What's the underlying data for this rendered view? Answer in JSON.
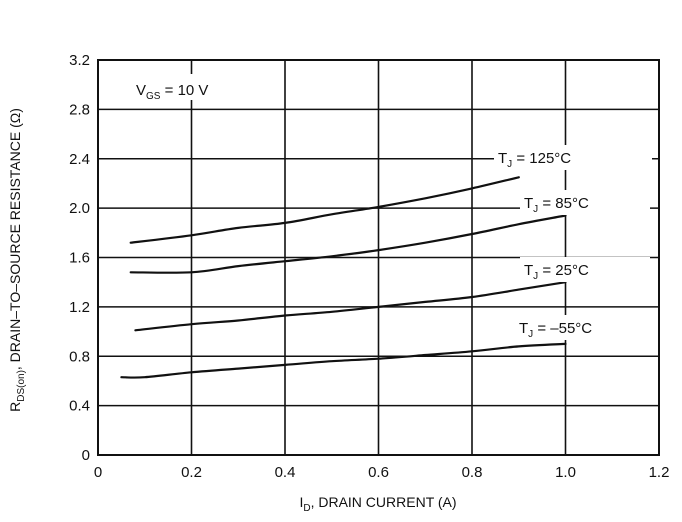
{
  "chart_data": {
    "type": "line",
    "title": "",
    "xlabel": {
      "prefix": "I",
      "sub": "D",
      "rest": ", DRAIN CURRENT (A)"
    },
    "ylabel": {
      "prefix": "R",
      "sub": "DS(on)",
      "rest": ", DRAIN–TO–SOURCE RESISTANCE (Ω)"
    },
    "xlim": [
      0,
      1.2
    ],
    "ylim": [
      0,
      3.2
    ],
    "x_ticks": [
      "0",
      "0.2",
      "0.4",
      "0.6",
      "0.8",
      "1.0",
      "1.2"
    ],
    "y_ticks": [
      "0",
      "0.4",
      "0.8",
      "1.2",
      "1.6",
      "2.0",
      "2.4",
      "2.8",
      "3.2"
    ],
    "grid": true,
    "condition": {
      "prefix": "V",
      "sub": "GS",
      "rest": " = 10 V"
    },
    "series": [
      {
        "name": "T_J = 125°C",
        "label": {
          "prefix": "T",
          "sub": "J",
          "rest": " = 125°C"
        },
        "points": [
          [
            0.07,
            1.72
          ],
          [
            0.2,
            1.78
          ],
          [
            0.3,
            1.84
          ],
          [
            0.4,
            1.88
          ],
          [
            0.5,
            1.95
          ],
          [
            0.6,
            2.01
          ],
          [
            0.7,
            2.08
          ],
          [
            0.8,
            2.16
          ],
          [
            0.9,
            2.25
          ]
        ]
      },
      {
        "name": "T_J = 85°C",
        "label": {
          "prefix": "T",
          "sub": "J",
          "rest": " = 85°C"
        },
        "points": [
          [
            0.07,
            1.48
          ],
          [
            0.2,
            1.48
          ],
          [
            0.3,
            1.53
          ],
          [
            0.4,
            1.57
          ],
          [
            0.5,
            1.61
          ],
          [
            0.6,
            1.66
          ],
          [
            0.7,
            1.72
          ],
          [
            0.8,
            1.79
          ],
          [
            0.9,
            1.87
          ],
          [
            1.0,
            1.94
          ]
        ]
      },
      {
        "name": "T_J = 25°C",
        "label": {
          "prefix": "T",
          "sub": "J",
          "rest": " = 25°C"
        },
        "points": [
          [
            0.08,
            1.01
          ],
          [
            0.2,
            1.06
          ],
          [
            0.3,
            1.09
          ],
          [
            0.4,
            1.13
          ],
          [
            0.5,
            1.16
          ],
          [
            0.6,
            1.2
          ],
          [
            0.7,
            1.24
          ],
          [
            0.8,
            1.28
          ],
          [
            0.9,
            1.34
          ],
          [
            1.0,
            1.4
          ]
        ]
      },
      {
        "name": "T_J = –55°C",
        "label": {
          "prefix": "T",
          "sub": "J",
          "rest": " = –55°C"
        },
        "points": [
          [
            0.05,
            0.63
          ],
          [
            0.1,
            0.63
          ],
          [
            0.2,
            0.67
          ],
          [
            0.3,
            0.7
          ],
          [
            0.4,
            0.73
          ],
          [
            0.5,
            0.76
          ],
          [
            0.6,
            0.78
          ],
          [
            0.7,
            0.81
          ],
          [
            0.8,
            0.84
          ],
          [
            0.9,
            0.88
          ],
          [
            1.0,
            0.9
          ]
        ]
      }
    ]
  }
}
